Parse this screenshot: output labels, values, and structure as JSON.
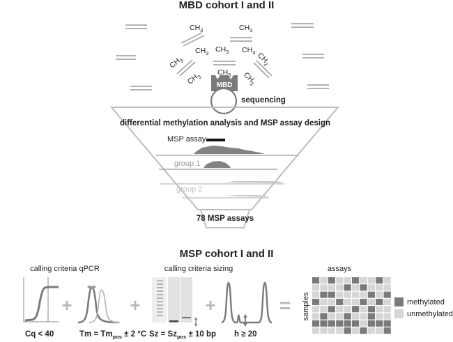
{
  "top": {
    "title": "MBD cohort I and II",
    "sequencing": "sequencing",
    "mbd": "MBD",
    "ch3_main": "CH",
    "ch3_sub": "3"
  },
  "funnel": {
    "heading": "differential methylation analysis and MSP assay design",
    "msp_assay": "MSP assay",
    "group1": "group 1",
    "group2": "group 2",
    "assays_count": "78 MSP assays"
  },
  "bottom": {
    "title": "MSP cohort I and II",
    "qpcr_label": "calling criteria qPCR",
    "sizing_label": "calling criteria sizing",
    "assays_label": "assays",
    "samples_label": "samples",
    "cq": "Cq < 40",
    "tm_a": "Tm = Tm",
    "tm_sub": "pos",
    "tm_b": " ± 2 °C",
    "sz_a": "Sz = Sz",
    "sz_sub": "pos",
    "sz_b": " ± 10 bp",
    "h": "h ≥ 20",
    "plus": "+",
    "equals": "="
  },
  "legend": {
    "methylated": "methylated",
    "unmethylated": "unmethylated"
  },
  "colors": {
    "methylated": "#7a7a7a",
    "unmethylated": "#d6d6d6",
    "line": "#bdbdbd",
    "dark": "#6e6e6e"
  },
  "heatmap": {
    "rows": [
      [
        1,
        0,
        1,
        0,
        0,
        1,
        0,
        0,
        1,
        0
      ],
      [
        0,
        0,
        0,
        0,
        1,
        0,
        1,
        0,
        0,
        0
      ],
      [
        0,
        1,
        1,
        0,
        0,
        0,
        0,
        1,
        0,
        1
      ],
      [
        1,
        0,
        0,
        1,
        0,
        0,
        1,
        0,
        1,
        0
      ],
      [
        0,
        0,
        1,
        0,
        0,
        1,
        0,
        1,
        0,
        0
      ],
      [
        0,
        1,
        0,
        0,
        1,
        0,
        0,
        1,
        0,
        0
      ],
      [
        1,
        1,
        1,
        1,
        1,
        1,
        0,
        1,
        1,
        1
      ],
      [
        0,
        0,
        0,
        0,
        1,
        0,
        1,
        0,
        0,
        1
      ]
    ]
  }
}
